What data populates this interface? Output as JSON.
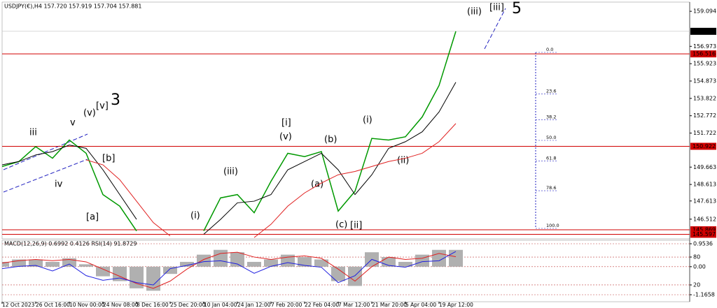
{
  "chart_data": [
    {
      "type": "line",
      "title": "USDJPY(€),H4  157.720 157.919 157.704 157.881",
      "categories": [
        "12 Oct 2023",
        null,
        "26 Oct 16:00",
        null,
        "10 Nov 00:00",
        null,
        "24 Nov 08:00",
        null,
        "8 Dec 16:00",
        null,
        "25 Dec 20:00",
        null,
        "10 Jan 04:00",
        null,
        "24 Jan 12:00",
        null,
        "7 Feb 20:00",
        null,
        "22 Feb 04:00",
        null,
        "7 Mar 12:00",
        null,
        "21 Mar 20:00",
        null,
        "5 Apr 04:00",
        null,
        "19 Apr 12:00",
        null
      ],
      "series": [
        {
          "color": "#009900",
          "values": [
            149.7,
            150.0,
            150.9,
            150.2,
            151.3,
            150.5,
            148.0,
            147.3,
            145.8,
            null,
            null,
            null,
            145.8,
            147.8,
            148.0,
            146.9,
            148.8,
            150.5,
            150.3,
            150.6,
            147.0,
            148.2,
            151.4,
            151.3,
            151.5,
            152.7,
            154.6,
            157.881
          ]
        },
        {
          "color": "#000000",
          "values": [
            149.8,
            150.0,
            150.4,
            150.6,
            151.0,
            150.8,
            149.5,
            148.0,
            146.5,
            null,
            null,
            null,
            145.6,
            146.5,
            147.5,
            147.6,
            148.0,
            149.5,
            150.0,
            150.5,
            149.5,
            148.0,
            149.2,
            150.8,
            151.2,
            151.8,
            153.0,
            154.8
          ]
        },
        {
          "color": "#e02020",
          "values": [
            null,
            null,
            null,
            null,
            null,
            150.1,
            149.8,
            148.9,
            147.6,
            146.3,
            145.5,
            null,
            null,
            null,
            null,
            145.4,
            146.2,
            147.3,
            148.1,
            148.7,
            149.2,
            149.4,
            149.7,
            150.0,
            150.2,
            150.5,
            151.2,
            152.3
          ]
        }
      ],
      "ylim": [
        145.32,
        159.65
      ],
      "yticks": [
        159.094,
        156.973,
        155.923,
        154.873,
        153.822,
        152.772,
        151.722,
        149.663,
        148.613,
        147.613,
        146.512
      ],
      "levels": [
        {
          "value": 156.516,
          "color": "#d00000"
        },
        {
          "value": 150.922,
          "color": "#d00000"
        },
        {
          "value": 145.869,
          "color": "#d00000"
        },
        {
          "value": 145.597,
          "color": "#d00000"
        }
      ],
      "last_price": 157.881,
      "fib_levels": [
        {
          "value": 0,
          "label": "0.0"
        },
        23.6,
        38.2,
        {
          "value": 50,
          "label": "50.0"
        },
        61.8,
        78.6,
        {
          "value": 100,
          "label": "100.0"
        }
      ],
      "annotations": [
        "iii",
        "v",
        "iv",
        "(v)",
        "[v]",
        "3",
        "[b]",
        "[a]",
        "(i)",
        "(iii)",
        "[i]",
        "(v)",
        "(b)",
        "(a)",
        "(c)",
        "[ii]",
        "(i)",
        "(ii)",
        "(iii)",
        "[iii]",
        "5"
      ]
    },
    {
      "type": "bar",
      "title": "MACD(12,26,9) 0.6992 0.4126 RSI(14) 91.8729",
      "series": [
        {
          "color": "#b0b0b0",
          "values": [
            0.2,
            0.3,
            0.3,
            0.2,
            0.35,
            0.1,
            -0.4,
            -0.6,
            -0.9,
            -1.0,
            -0.3,
            0.2,
            0.5,
            0.7,
            0.6,
            0.2,
            0.3,
            0.5,
            0.4,
            0.3,
            -0.6,
            -0.8,
            0.6,
            0.4,
            0.2,
            0.5,
            0.7,
            0.6992
          ]
        },
        {
          "color": "#e02020",
          "values": [
            0.15,
            0.25,
            0.3,
            0.25,
            0.3,
            0.2,
            -0.1,
            -0.4,
            -0.7,
            -0.9,
            -0.6,
            -0.1,
            0.3,
            0.55,
            0.6,
            0.4,
            0.3,
            0.4,
            0.45,
            0.35,
            -0.1,
            -0.6,
            0.0,
            0.4,
            0.3,
            0.35,
            0.55,
            0.4126
          ]
        },
        {
          "color": "#2020e0",
          "axis": "y2",
          "values": [
            55,
            60,
            62,
            50,
            65,
            40,
            30,
            35,
            25,
            20,
            55,
            62,
            70,
            72,
            65,
            45,
            60,
            68,
            62,
            58,
            25,
            40,
            75,
            62,
            58,
            70,
            72,
            91.8729
          ]
        }
      ],
      "ylim": [
        -1.1658,
        0.9536
      ],
      "yticks": [
        0.9536,
        {
          "value": 0,
          "label": "0.00"
        },
        -1.1658
      ],
      "y2lim": [
        0,
        100
      ],
      "y2ticks": [
        80,
        20
      ]
    }
  ]
}
